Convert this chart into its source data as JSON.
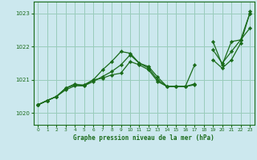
{
  "title": "Graphe pression niveau de la mer (hPa)",
  "bg_color": "#cce8ee",
  "grid_color": "#99ccbb",
  "line_color": "#1a6b1a",
  "marker_color": "#1a6b1a",
  "xlim": [
    -0.5,
    23.5
  ],
  "ylim": [
    1019.65,
    1023.35
  ],
  "yticks": [
    1020,
    1021,
    1022,
    1023
  ],
  "xticks": [
    0,
    1,
    2,
    3,
    4,
    5,
    6,
    7,
    8,
    9,
    10,
    11,
    12,
    13,
    14,
    15,
    16,
    17,
    18,
    19,
    20,
    21,
    22,
    23
  ],
  "series": [
    [
      1020.25,
      1020.38,
      1020.5,
      1020.75,
      1020.85,
      1020.85,
      1021.0,
      1021.05,
      1021.15,
      1021.2,
      1021.55,
      1021.45,
      1021.3,
      1020.95,
      1020.8,
      1020.8,
      1020.8,
      1020.85,
      null,
      1021.9,
      1021.5,
      1021.85,
      1022.2,
      1022.55
    ],
    [
      1020.25,
      1020.38,
      1020.5,
      1020.7,
      1020.82,
      1020.82,
      1020.95,
      1021.1,
      1021.25,
      1021.45,
      1021.75,
      1021.5,
      1021.35,
      1021.0,
      1020.8,
      1020.8,
      1020.8,
      1020.88,
      null,
      1021.6,
      1021.35,
      1021.6,
      1022.1,
      1023.0
    ],
    [
      1020.25,
      1020.38,
      1020.5,
      1020.75,
      1020.88,
      1020.82,
      1021.0,
      1021.3,
      1021.55,
      1021.85,
      1021.8,
      1021.5,
      1021.4,
      1021.08,
      1020.8,
      1020.8,
      1020.8,
      1021.45,
      null,
      1022.15,
      1021.45,
      1022.15,
      1022.2,
      1023.0
    ],
    [
      1020.25,
      1020.38,
      null,
      null,
      null,
      null,
      null,
      null,
      null,
      null,
      null,
      null,
      null,
      null,
      null,
      null,
      null,
      null,
      null,
      null,
      null,
      null,
      null,
      1023.05
    ]
  ]
}
